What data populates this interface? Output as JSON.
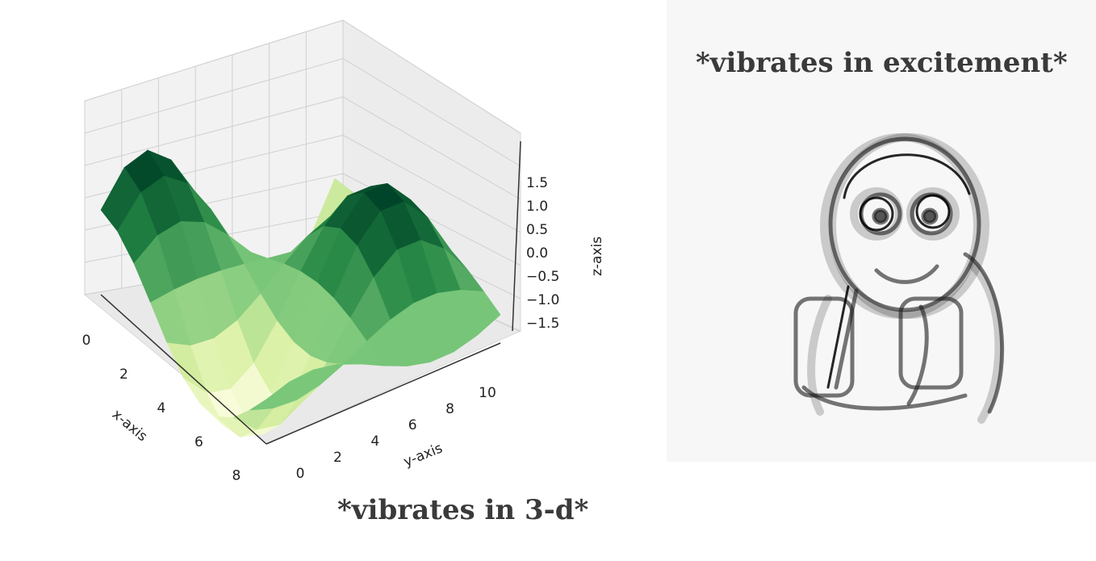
{
  "chart_data": {
    "type": "surface",
    "xlabel": "x-axis",
    "ylabel": "y-axis",
    "zlabel": "z-axis",
    "x_ticks": [
      "0",
      "2",
      "4",
      "6",
      "8"
    ],
    "y_ticks": [
      "0",
      "2",
      "4",
      "6",
      "8",
      "10"
    ],
    "z_ticks": [
      "1.5",
      "1.0",
      "0.5",
      "0.0",
      "−0.5",
      "−1.0",
      "−1.5"
    ],
    "xlim": [
      0,
      9
    ],
    "ylim": [
      0,
      11
    ],
    "zlim": [
      -1.8,
      1.8
    ],
    "colormap": [
      "#ffffe5",
      "#d9f0a3",
      "#78c679",
      "#238443",
      "#004529"
    ]
  },
  "captions": {
    "left": "*vibrates in 3-d*",
    "right": "*vibrates in excitement*"
  },
  "meme": {
    "icon": "vibrating-character-icon"
  }
}
